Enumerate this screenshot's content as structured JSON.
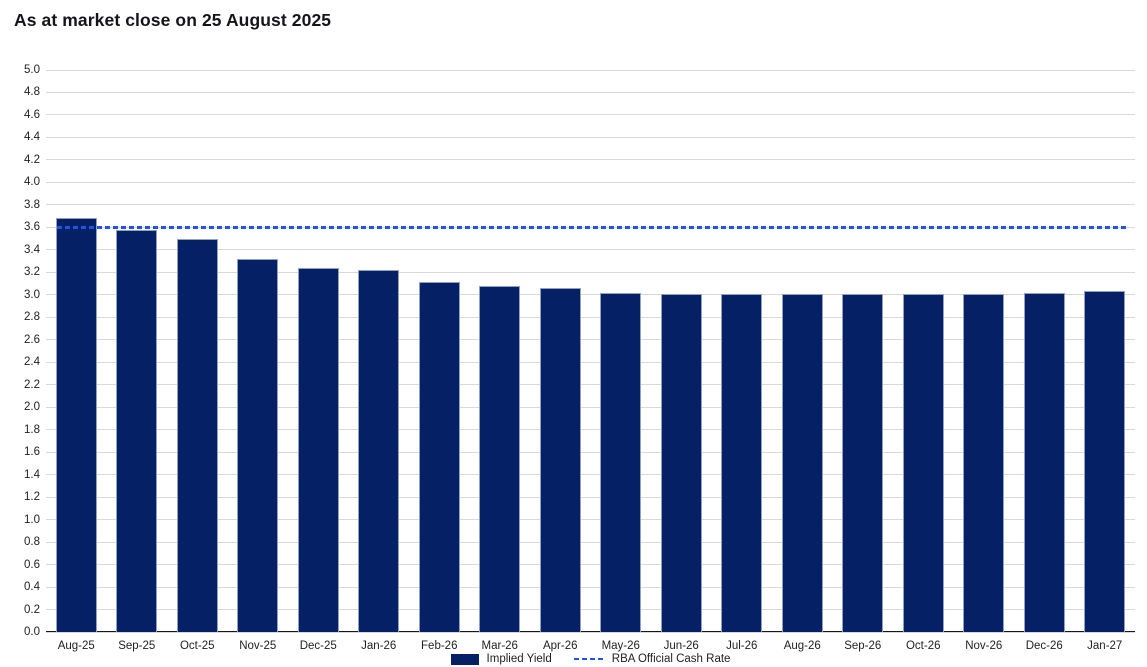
{
  "title": "As at market close on 25 August 2025",
  "chart_data": {
    "type": "bar",
    "title": "As at market close on 25 August 2025",
    "categories": [
      "Aug-25",
      "Sep-25",
      "Oct-25",
      "Nov-25",
      "Dec-25",
      "Jan-26",
      "Feb-26",
      "Mar-26",
      "Apr-26",
      "May-26",
      "Jun-26",
      "Jul-26",
      "Aug-26",
      "Sep-26",
      "Oct-26",
      "Nov-26",
      "Dec-26",
      "Jan-27"
    ],
    "series": [
      {
        "name": "Implied Yield",
        "type": "bar",
        "color": "#052065",
        "values": [
          3.68,
          3.58,
          3.5,
          3.32,
          3.24,
          3.22,
          3.11,
          3.08,
          3.06,
          3.02,
          3.01,
          3.01,
          3.01,
          3.01,
          3.01,
          3.01,
          3.02,
          3.03
        ]
      },
      {
        "name": "RBA Official Cash Rate",
        "type": "line",
        "line_style": "dashed",
        "color": "#2254e3",
        "value": 3.6
      }
    ],
    "xlabel": "",
    "ylabel": "",
    "ylim": [
      0.0,
      5.0
    ],
    "y_tick_step": 0.2,
    "y_ticks": [
      "0.0",
      "0.2",
      "0.4",
      "0.6",
      "0.8",
      "1.0",
      "1.2",
      "1.4",
      "1.6",
      "1.8",
      "2.0",
      "2.2",
      "2.4",
      "2.6",
      "2.8",
      "3.0",
      "3.2",
      "3.4",
      "3.6",
      "3.8",
      "4.0",
      "4.2",
      "4.4",
      "4.6",
      "4.8",
      "5.0"
    ],
    "grid": "horizontal",
    "legend_position": "bottom-center"
  },
  "colors": {
    "bar_fill": "#052065",
    "bar_border": "#92a0c4",
    "cash_rate_line": "#2254e3",
    "gridline": "#d9d9d9",
    "axis_line": "#17171b",
    "title_text": "#14141c",
    "tick_text": "#1f1f1f",
    "background": "#ffffff"
  }
}
